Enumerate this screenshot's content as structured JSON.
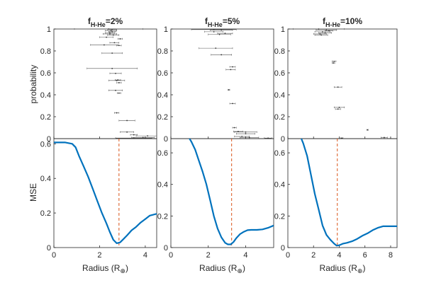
{
  "figure": {
    "ylabel_top": "probability",
    "ylabel_bottom": "MSE",
    "xlabel": "Radius (R",
    "xlabel_symbol": "⊕",
    "xlabel_close": ")"
  },
  "colors": {
    "curve": "#0072BD",
    "dashed_line": "#D95319",
    "errorbar": "#555555",
    "axis": "#262626"
  },
  "chart_data": [
    {
      "type": "scatter",
      "title_prefix": "f",
      "title_sub": "H-He",
      "title_suffix": "=2%",
      "top": {
        "ylim": [
          0,
          1
        ],
        "yticks": [
          "0",
          "0.2",
          "0.4",
          "0.6",
          "0.8",
          "1"
        ],
        "points": [
          {
            "x": 2.4,
            "y": 1.0,
            "xerr": 1.5
          },
          {
            "x": 2.55,
            "y": 0.995,
            "xerr": 0.2
          },
          {
            "x": 2.5,
            "y": 0.985,
            "xerr": 0.25
          },
          {
            "x": 2.55,
            "y": 0.975,
            "xerr": 0.15
          },
          {
            "x": 2.45,
            "y": 0.965,
            "xerr": 0.2
          },
          {
            "x": 2.45,
            "y": 0.955,
            "xerr": 0.3
          },
          {
            "x": 2.6,
            "y": 0.945,
            "xerr": 0.25
          },
          {
            "x": 2.3,
            "y": 0.925,
            "xerr": 0.3
          },
          {
            "x": 2.9,
            "y": 0.91,
            "xerr": 0.1
          },
          {
            "x": 2.65,
            "y": 0.875,
            "xerr": 0.2
          },
          {
            "x": 2.2,
            "y": 0.855,
            "xerr": 0.6
          },
          {
            "x": 2.85,
            "y": 0.85,
            "xerr": 0.1
          },
          {
            "x": 2.55,
            "y": 0.78,
            "xerr": 0.45
          },
          {
            "x": 2.55,
            "y": 0.64,
            "xerr": 1.1
          },
          {
            "x": 2.7,
            "y": 0.595,
            "xerr": 0.25
          },
          {
            "x": 2.8,
            "y": 0.535,
            "xerr": 0.12
          },
          {
            "x": 2.75,
            "y": 0.53,
            "xerr": 0.35
          },
          {
            "x": 2.85,
            "y": 0.51,
            "xerr": 0.1
          },
          {
            "x": 2.7,
            "y": 0.44,
            "xerr": 0.3
          },
          {
            "x": 2.85,
            "y": 0.415,
            "xerr": 0.08
          },
          {
            "x": 2.75,
            "y": 0.235,
            "xerr": 0.1
          },
          {
            "x": 3.2,
            "y": 0.165,
            "xerr": 0.35
          },
          {
            "x": 3.2,
            "y": 0.06,
            "xerr": 0.3
          },
          {
            "x": 3.5,
            "y": 0.035,
            "xerr": 0.15
          },
          {
            "x": 4.1,
            "y": 0.025,
            "xerr": 0.5
          },
          {
            "x": 3.9,
            "y": 0.01,
            "xerr": 0.5
          },
          {
            "x": 3.5,
            "y": 0.005,
            "xerr": 0.8
          }
        ]
      },
      "bottom": {
        "type": "line",
        "xlim": [
          0,
          4.5
        ],
        "ylim": [
          0,
          0.63
        ],
        "xticks": [
          "0",
          "2",
          "4"
        ],
        "yticks": [
          "0",
          "0.2",
          "0.4",
          "0.6"
        ],
        "x": [
          0,
          0.5,
          0.8,
          0.95,
          1.1,
          1.3,
          1.5,
          1.7,
          1.9,
          2.1,
          2.3,
          2.45,
          2.6,
          2.75,
          2.9,
          3.05,
          3.2,
          3.4,
          3.6,
          3.8,
          4.0,
          4.2,
          4.5
        ],
        "y": [
          0.608,
          0.608,
          0.6,
          0.58,
          0.53,
          0.47,
          0.41,
          0.34,
          0.27,
          0.2,
          0.14,
          0.09,
          0.045,
          0.025,
          0.03,
          0.05,
          0.07,
          0.1,
          0.12,
          0.145,
          0.165,
          0.185,
          0.195
        ],
        "vline_x": 2.85
      }
    },
    {
      "type": "scatter",
      "title_prefix": "f",
      "title_sub": "H-He",
      "title_suffix": "=5%",
      "top": {
        "ylim": [
          0,
          1
        ],
        "yticks": [
          "0",
          "0.2",
          "0.4",
          "0.6",
          "0.8",
          "1"
        ],
        "points": [
          {
            "x": 2.3,
            "y": 0.995,
            "xerr": 1.2
          },
          {
            "x": 2.7,
            "y": 0.99,
            "xerr": 0.6
          },
          {
            "x": 2.3,
            "y": 0.975,
            "xerr": 0.5
          },
          {
            "x": 2.9,
            "y": 0.96,
            "xerr": 0.4
          },
          {
            "x": 2.6,
            "y": 0.95,
            "xerr": 0.6
          },
          {
            "x": 2.4,
            "y": 0.825,
            "xerr": 0.9
          },
          {
            "x": 2.7,
            "y": 0.765,
            "xerr": 0.55
          },
          {
            "x": 3.3,
            "y": 0.655,
            "xerr": 0.15
          },
          {
            "x": 3.2,
            "y": 0.63,
            "xerr": 0.25
          },
          {
            "x": 3.1,
            "y": 0.445,
            "xerr": 0.05
          },
          {
            "x": 3.3,
            "y": 0.32,
            "xerr": 0.15
          },
          {
            "x": 3.4,
            "y": 0.1,
            "xerr": 0.1
          },
          {
            "x": 3.6,
            "y": 0.065,
            "xerr": 0.25
          },
          {
            "x": 4.0,
            "y": 0.06,
            "xerr": 0.6
          },
          {
            "x": 4.0,
            "y": 0.045,
            "xerr": 0.5
          },
          {
            "x": 3.8,
            "y": 0.02,
            "xerr": 0.4
          },
          {
            "x": 4.2,
            "y": 0.01,
            "xerr": 0.5
          },
          {
            "x": 5.2,
            "y": 0.005,
            "xerr": 0.2
          }
        ]
      },
      "bottom": {
        "type": "line",
        "xlim": [
          0,
          5.5
        ],
        "ylim": [
          0,
          0.69
        ],
        "xticks": [
          "0",
          "2",
          "4"
        ],
        "yticks": [
          "0",
          "0.2",
          "0.4",
          "0.6"
        ],
        "x": [
          0.95,
          1.1,
          1.3,
          1.5,
          1.7,
          1.9,
          2.1,
          2.3,
          2.5,
          2.7,
          2.9,
          3.05,
          3.2,
          3.35,
          3.5,
          3.7,
          3.9,
          4.1,
          4.3,
          4.6,
          4.9,
          5.2,
          5.5
        ],
        "y": [
          0.7,
          0.67,
          0.62,
          0.55,
          0.48,
          0.4,
          0.3,
          0.2,
          0.12,
          0.065,
          0.03,
          0.02,
          0.02,
          0.035,
          0.06,
          0.085,
          0.1,
          0.11,
          0.112,
          0.112,
          0.115,
          0.125,
          0.14
        ],
        "vline_x": 3.25
      }
    },
    {
      "type": "scatter",
      "title_prefix": "f",
      "title_sub": "H-He",
      "title_suffix": "=10%",
      "top": {
        "ylim": [
          0,
          1
        ],
        "yticks": [
          "0",
          "0.2",
          "0.4",
          "0.6",
          "0.8",
          "1"
        ],
        "points": [
          {
            "x": 2.4,
            "y": 1.0,
            "xerr": 2.0
          },
          {
            "x": 3.0,
            "y": 0.99,
            "xerr": 0.8
          },
          {
            "x": 3.2,
            "y": 0.985,
            "xerr": 0.3
          },
          {
            "x": 2.7,
            "y": 0.975,
            "xerr": 0.6
          },
          {
            "x": 2.9,
            "y": 0.965,
            "xerr": 0.5
          },
          {
            "x": 2.5,
            "y": 0.955,
            "xerr": 0.5
          },
          {
            "x": 2.6,
            "y": 0.945,
            "xerr": 0.5
          },
          {
            "x": 3.6,
            "y": 0.705,
            "xerr": 0.15
          },
          {
            "x": 3.55,
            "y": 0.69,
            "xerr": 0.1
          },
          {
            "x": 3.9,
            "y": 0.47,
            "xerr": 0.3
          },
          {
            "x": 4.0,
            "y": 0.285,
            "xerr": 0.4
          },
          {
            "x": 3.9,
            "y": 0.27,
            "xerr": 0.2
          },
          {
            "x": 6.2,
            "y": 0.08,
            "xerr": 0.05
          },
          {
            "x": 4.2,
            "y": 0.005,
            "xerr": 0.1
          },
          {
            "x": 7.5,
            "y": 0.01,
            "xerr": 0.25
          }
        ]
      },
      "bottom": {
        "type": "line",
        "xlim": [
          0,
          8.5
        ],
        "ylim": [
          0,
          0.69
        ],
        "xticks": [
          "0",
          "2",
          "4",
          "6",
          "8"
        ],
        "yticks": [
          "0",
          "0.2",
          "0.4",
          "0.6"
        ],
        "x": [
          1.0,
          1.2,
          1.5,
          1.8,
          2.1,
          2.4,
          2.7,
          3.0,
          3.3,
          3.6,
          3.8,
          4.0,
          4.3,
          4.6,
          5.0,
          5.4,
          5.8,
          6.2,
          6.6,
          7.0,
          7.4,
          8.0,
          8.5
        ],
        "y": [
          0.7,
          0.66,
          0.58,
          0.46,
          0.34,
          0.24,
          0.14,
          0.08,
          0.05,
          0.025,
          0.012,
          0.015,
          0.025,
          0.03,
          0.04,
          0.055,
          0.075,
          0.09,
          0.11,
          0.125,
          0.135,
          0.135,
          0.135
        ],
        "vline_x": 3.85
      }
    }
  ]
}
